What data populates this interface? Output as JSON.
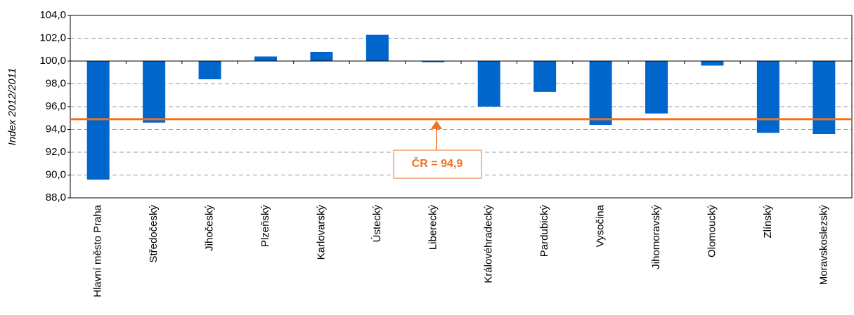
{
  "chart_data": {
    "type": "bar",
    "y_label": "Index 2012/2011",
    "categories": [
      "Hlavní město Praha",
      "Středočeský",
      "Jihočeský",
      "Plzeňský",
      "Karlovarský",
      "Ústecký",
      "Liberecký",
      "Královéhradecký",
      "Pardubický",
      "Vysočina",
      "Jihomoravský",
      "Olomoucký",
      "Zlínský",
      "Moravskoslezský"
    ],
    "values": [
      89.6,
      94.6,
      98.4,
      100.4,
      100.8,
      102.3,
      99.9,
      96.0,
      97.3,
      94.4,
      95.4,
      99.6,
      93.7,
      93.6
    ],
    "color": "#0066cc",
    "bar_base": 100,
    "ylim": [
      88,
      104
    ],
    "yticks": [
      {
        "value": 88,
        "label": "88,0"
      },
      {
        "value": 90,
        "label": "90,0"
      },
      {
        "value": 92,
        "label": "92,0"
      },
      {
        "value": 94,
        "label": "94,0"
      },
      {
        "value": 96,
        "label": "96,0"
      },
      {
        "value": 98,
        "label": "98,0"
      },
      {
        "value": 100,
        "label": "100,0"
      },
      {
        "value": 102,
        "label": "102,0"
      },
      {
        "value": 104,
        "label": "104,0"
      }
    ],
    "grid": true,
    "reference_line": {
      "value": 94.9,
      "label": "ČR = 94,9",
      "color": "#f07020"
    }
  }
}
